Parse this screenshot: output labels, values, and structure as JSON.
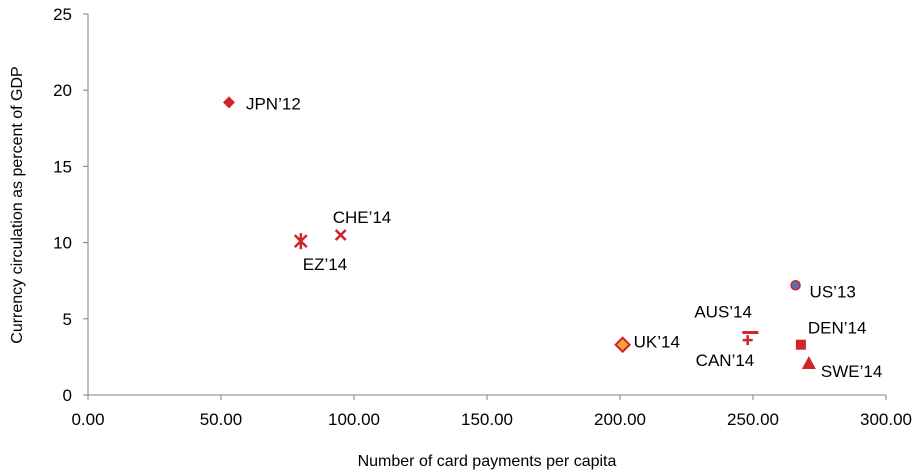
{
  "chart_data": {
    "type": "scatter",
    "title": "",
    "xlabel": "Number of card payments per capita",
    "ylabel": "Currency circulation as percent of GDP",
    "xlim": [
      0,
      300
    ],
    "ylim": [
      0,
      25
    ],
    "xticks": [
      "0.00",
      "50.00",
      "100.00",
      "150.00",
      "200.00",
      "250.00",
      "300.00"
    ],
    "yticks": [
      "0",
      "5",
      "10",
      "15",
      "20",
      "25"
    ],
    "grid": false,
    "legend": "none",
    "colors": {
      "marker": "#d0232a",
      "uk_fill": "#f2a33a",
      "us_fill": "#5b6fb5",
      "axis": "#808080"
    },
    "points": [
      {
        "label": "JPN’12",
        "x": 53,
        "y": 19.2,
        "marker": "diamond"
      },
      {
        "label": "CHE’14",
        "x": 95,
        "y": 10.5,
        "marker": "x"
      },
      {
        "label": "EZ’14",
        "x": 80,
        "y": 10.1,
        "marker": "star"
      },
      {
        "label": "UK’14",
        "x": 201,
        "y": 3.3,
        "marker": "diamond-filled"
      },
      {
        "label": "AUS’14",
        "x": 249,
        "y": 4.1,
        "marker": "dash"
      },
      {
        "label": "CAN’14",
        "x": 248,
        "y": 3.6,
        "marker": "plus"
      },
      {
        "label": "US’13",
        "x": 266,
        "y": 7.2,
        "marker": "circle"
      },
      {
        "label": "DEN’14",
        "x": 268,
        "y": 3.3,
        "marker": "square"
      },
      {
        "label": "SWE’14",
        "x": 271,
        "y": 2.1,
        "marker": "triangle"
      }
    ]
  }
}
